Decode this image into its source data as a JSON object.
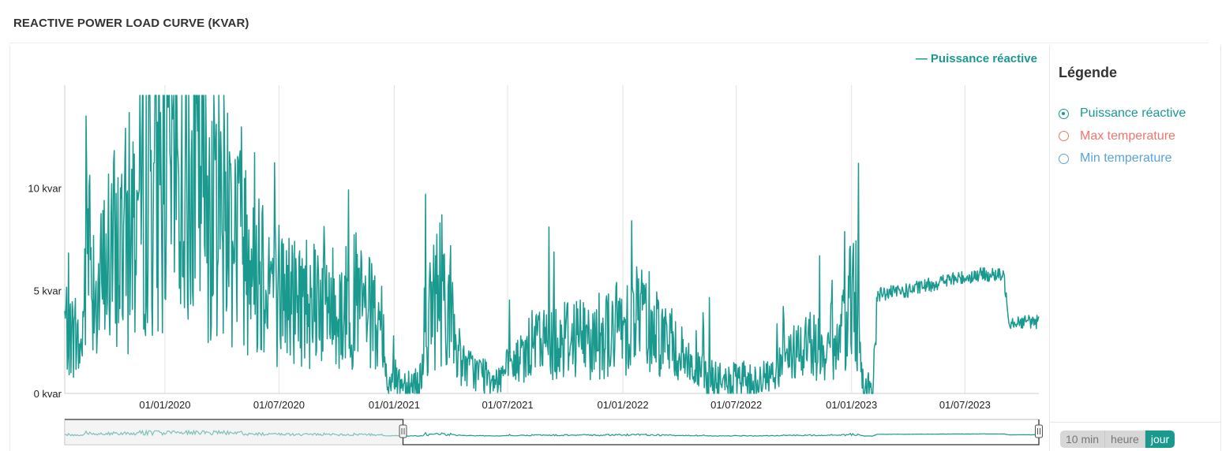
{
  "title": "REACTIVE POWER LOAD CURVE (KVAR)",
  "colors": {
    "series": "#1a9a8f",
    "navigator_unselected": "#9fd0cb",
    "max_temperature": "#f07470",
    "min_temperature": "#5aa3dc"
  },
  "legend": {
    "title": "Légende",
    "items": [
      {
        "label": "Puissance réactive",
        "color": "#1a9a8f",
        "checked": true
      },
      {
        "label": "Max temperature",
        "color": "#f07470",
        "checked": false
      },
      {
        "label": "Min temperature",
        "color": "#5aa3dc",
        "checked": false
      }
    ]
  },
  "resolution": {
    "options": [
      "10 min",
      "heure",
      "jour"
    ],
    "active": "jour"
  },
  "chart_data": {
    "type": "line",
    "title": "REACTIVE POWER LOAD CURVE (KVAR)",
    "series_label": "Puissance réactive",
    "legend_label": "— Puissance réactive",
    "x_ticks": [
      "01/01/2020",
      "01/07/2020",
      "01/01/2021",
      "01/07/2021",
      "01/01/2022",
      "01/07/2022",
      "01/01/2023",
      "01/07/2023"
    ],
    "y_ticks": [
      "0 kvar",
      "5 kvar",
      "10 kvar"
    ],
    "ylim": [
      0,
      15
    ],
    "xlim": [
      "2019-07-25",
      "2023-10-27"
    ],
    "grid": "vertical",
    "navigator_window": [
      "2021-01-15",
      "2023-10-27"
    ],
    "keypoints": [
      [
        "2019-07-25",
        3.5
      ],
      [
        "2019-08-20",
        2.0
      ],
      [
        "2019-09-01",
        8.0
      ],
      [
        "2019-09-15",
        4.5
      ],
      [
        "2019-10-01",
        6.5
      ],
      [
        "2019-11-01",
        7.5
      ],
      [
        "2019-12-01",
        10.5
      ],
      [
        "2020-01-01",
        11.0
      ],
      [
        "2020-02-01",
        10.5
      ],
      [
        "2020-03-01",
        10.0
      ],
      [
        "2020-04-01",
        9.5
      ],
      [
        "2020-05-01",
        8.0
      ],
      [
        "2020-06-01",
        6.5
      ],
      [
        "2020-07-01",
        5.0
      ],
      [
        "2020-08-01",
        4.5
      ],
      [
        "2020-09-01",
        5.0
      ],
      [
        "2020-10-01",
        4.0
      ],
      [
        "2020-11-01",
        4.5
      ],
      [
        "2020-12-01",
        3.5
      ],
      [
        "2020-12-20",
        0.8
      ],
      [
        "2021-01-15",
        0.5
      ],
      [
        "2021-02-10",
        0.5
      ],
      [
        "2021-03-01",
        4.0
      ],
      [
        "2021-03-20",
        5.5
      ],
      [
        "2021-04-15",
        1.5
      ],
      [
        "2021-05-15",
        1.0
      ],
      [
        "2021-06-15",
        0.8
      ],
      [
        "2021-07-15",
        1.5
      ],
      [
        "2021-08-15",
        2.5
      ],
      [
        "2021-09-15",
        2.5
      ],
      [
        "2021-10-15",
        3.0
      ],
      [
        "2021-11-15",
        2.5
      ],
      [
        "2021-12-15",
        3.0
      ],
      [
        "2022-01-05",
        3.5
      ],
      [
        "2022-02-01",
        4.0
      ],
      [
        "2022-03-01",
        3.0
      ],
      [
        "2022-04-01",
        2.0
      ],
      [
        "2022-05-01",
        1.0
      ],
      [
        "2022-06-01",
        0.5
      ],
      [
        "2022-07-01",
        0.5
      ],
      [
        "2022-08-01",
        0.5
      ],
      [
        "2022-09-01",
        1.0
      ],
      [
        "2022-10-01",
        2.0
      ],
      [
        "2022-11-01",
        2.5
      ],
      [
        "2022-12-01",
        1.5
      ],
      [
        "2022-12-20",
        3.0
      ],
      [
        "2023-01-05",
        6.0
      ],
      [
        "2023-01-20",
        0.0
      ],
      [
        "2023-02-05",
        0.3
      ],
      [
        "2023-02-10",
        4.8
      ],
      [
        "2023-04-01",
        5.0
      ],
      [
        "2023-06-01",
        5.5
      ],
      [
        "2023-08-01",
        5.8
      ],
      [
        "2023-09-01",
        5.7
      ],
      [
        "2023-09-10",
        3.5
      ],
      [
        "2023-10-27",
        3.5
      ]
    ],
    "spikes": [
      [
        "2019-08-28",
        13.5
      ],
      [
        "2019-11-20",
        9.7
      ],
      [
        "2019-12-20",
        13.2
      ],
      [
        "2020-10-20",
        9.9
      ],
      [
        "2021-02-20",
        9.7
      ],
      [
        "2021-09-05",
        8.1
      ],
      [
        "2022-01-15",
        8.4
      ],
      [
        "2023-01-12",
        11.2
      ]
    ]
  }
}
